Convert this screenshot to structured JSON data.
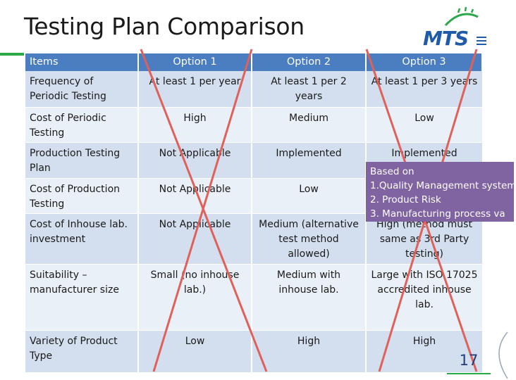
{
  "slide": {
    "title": "Testing Plan Comparison",
    "page_number": "17"
  },
  "logo": {
    "text": "MTS"
  },
  "table": {
    "headers": [
      "Items",
      "Option 1",
      "Option 2",
      "Option 3"
    ],
    "rows": [
      {
        "label": "Frequency of Periodic Testing",
        "values": [
          "At least 1 per year",
          "At least 1 per 2 years",
          "At least 1 per 3 years"
        ]
      },
      {
        "label": "Cost of Periodic Testing",
        "values": [
          "High",
          "Medium",
          "Low"
        ]
      },
      {
        "label": "Production Testing Plan",
        "values": [
          "Not Applicable",
          "Implemented",
          "Implemented"
        ]
      },
      {
        "label": "Cost of Production Testing",
        "values": [
          "Not Applicable",
          "Low",
          ""
        ]
      },
      {
        "label": "Cost of Inhouse lab. investment",
        "values": [
          "Not Applicable",
          "Medium (alternative test method allowed)",
          "High (method must same as 3rd Party testing)"
        ]
      },
      {
        "label": "Suitability – manufacturer size",
        "values": [
          "Small (no inhouse lab.)",
          "Medium with inhouse lab.",
          "Large with ISO 17025 accredited inhouse lab."
        ]
      },
      {
        "label": "Variety of Product Type",
        "values": [
          "Low",
          "High",
          "High"
        ]
      }
    ]
  },
  "callout": {
    "lines": [
      "Based on",
      "1.Quality Management system",
      "2. Product Risk",
      "3. Manufacturing process va"
    ]
  },
  "colors": {
    "header_bg": "#4a7ec1",
    "row_odd": "#d3dfee",
    "row_even": "#eaf0f7",
    "cross": "#e0605a",
    "callout_bg": "#8064a2",
    "accent_green": "#2aa84a",
    "logo_blue": "#1f5ba8"
  }
}
